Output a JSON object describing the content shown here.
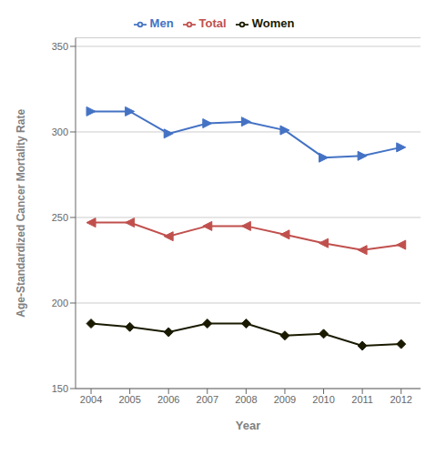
{
  "chart_data": {
    "type": "line",
    "x": [
      2004,
      2005,
      2006,
      2007,
      2008,
      2009,
      2010,
      2011,
      2012
    ],
    "series": [
      {
        "name": "Men",
        "color": "#4472c4",
        "marker": "triangle-right",
        "values": [
          312,
          312,
          299,
          305,
          306,
          301,
          285,
          286,
          291
        ]
      },
      {
        "name": "Total",
        "color": "#c0504d",
        "marker": "triangle-left",
        "values": [
          247,
          247,
          239,
          245,
          245,
          240,
          235,
          231,
          234
        ]
      },
      {
        "name": "Women",
        "color": "#1a1a00",
        "marker": "diamond",
        "values": [
          188,
          186,
          183,
          188,
          188,
          181,
          182,
          175,
          176
        ]
      }
    ],
    "xlabel": "Year",
    "ylabel": "Age-Standardized Cancer Mortality Rate",
    "xlim": [
      2003.6,
      2012.5
    ],
    "xticks": [
      2004,
      2005,
      2006,
      2007,
      2008,
      2009,
      2010,
      2011,
      2012
    ],
    "ylim": [
      150,
      355
    ],
    "yticks": [
      150,
      200,
      250,
      300,
      350
    ],
    "grid": true,
    "legend": "top"
  }
}
